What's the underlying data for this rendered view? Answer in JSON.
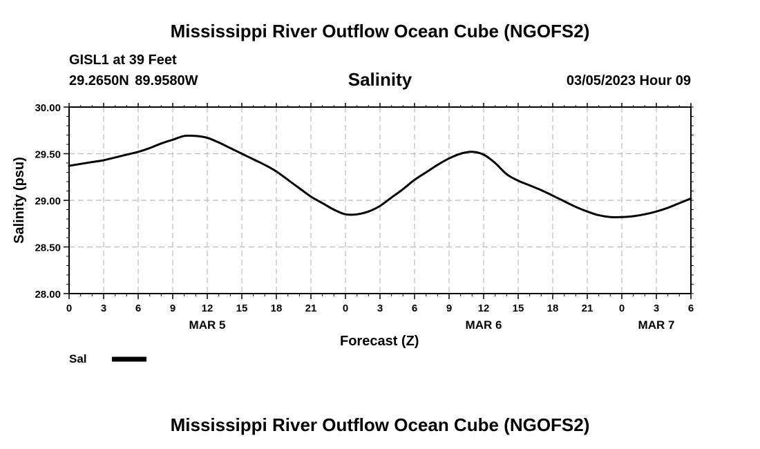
{
  "header": {
    "title": "Mississippi River Outflow Ocean Cube (NGOFS2)",
    "station": "GISL1 at 39 Feet",
    "coordinates": "29.2650N  89.9580W",
    "datetime": "03/05/2023 Hour 09"
  },
  "footer": {
    "title": "Mississippi River Outflow Ocean Cube (NGOFS2)"
  },
  "colors": {
    "line": "#000000",
    "grid": "#bbbbbb"
  },
  "chart_data": {
    "type": "line",
    "title": "Salinity",
    "xlabel": "Forecast (Z)",
    "ylabel": "Salinity (psu)",
    "ylim": [
      28.0,
      30.0
    ],
    "xlim": [
      0,
      54
    ],
    "grid": true,
    "yticks": [
      "28.00",
      "28.50",
      "29.00",
      "29.50",
      "30.00"
    ],
    "ytick_values": [
      28.0,
      28.5,
      29.0,
      29.5,
      30.0
    ],
    "xtick_hours": [
      0,
      3,
      6,
      9,
      12,
      15,
      18,
      21,
      24,
      27,
      30,
      33,
      36,
      39,
      42,
      45,
      48,
      51,
      54
    ],
    "xtick_labels": [
      "0",
      "3",
      "6",
      "9",
      "12",
      "15",
      "18",
      "21",
      "0",
      "3",
      "6",
      "9",
      "12",
      "15",
      "18",
      "21",
      "0",
      "3",
      "6"
    ],
    "day_labels": [
      {
        "hour": 12,
        "label": "MAR 5"
      },
      {
        "hour": 36,
        "label": "MAR 6"
      },
      {
        "hour": 51,
        "label": "MAR 7"
      }
    ],
    "legend": {
      "position": "bottom-left"
    },
    "series": [
      {
        "name": "Sal",
        "x": [
          0,
          1,
          2,
          3,
          4,
          5,
          6,
          7,
          8,
          9,
          10,
          11,
          12,
          13,
          14,
          15,
          16,
          17,
          18,
          19,
          20,
          21,
          22,
          23,
          24,
          25,
          26,
          27,
          28,
          29,
          30,
          31,
          32,
          33,
          34,
          35,
          36,
          37,
          38,
          39,
          40,
          41,
          42,
          43,
          44,
          45,
          46,
          47,
          48,
          49,
          50,
          51,
          52,
          53,
          54
        ],
        "values": [
          29.37,
          29.39,
          29.41,
          29.43,
          29.46,
          29.49,
          29.52,
          29.56,
          29.61,
          29.65,
          29.69,
          29.69,
          29.67,
          29.62,
          29.56,
          29.5,
          29.44,
          29.38,
          29.31,
          29.22,
          29.13,
          29.04,
          28.97,
          28.9,
          28.85,
          28.85,
          28.88,
          28.94,
          29.03,
          29.12,
          29.22,
          29.3,
          29.38,
          29.45,
          29.5,
          29.52,
          29.49,
          29.4,
          29.28,
          29.21,
          29.16,
          29.11,
          29.05,
          28.99,
          28.93,
          28.88,
          28.84,
          28.82,
          28.82,
          28.83,
          28.85,
          28.88,
          28.92,
          28.97,
          29.02
        ]
      }
    ]
  }
}
